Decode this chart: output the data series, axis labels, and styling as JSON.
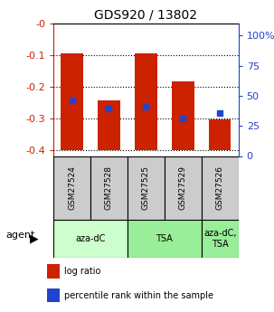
{
  "title": "GDS920 / 13802",
  "samples": [
    "GSM27524",
    "GSM27528",
    "GSM27525",
    "GSM27529",
    "GSM27526"
  ],
  "bar_bottoms": [
    -0.4,
    -0.4,
    -0.4,
    -0.4,
    -0.4
  ],
  "bar_tops": [
    -0.095,
    -0.245,
    -0.095,
    -0.185,
    -0.305
  ],
  "percentile_y": [
    -0.245,
    -0.27,
    -0.265,
    -0.3,
    -0.285
  ],
  "ylim_left": [
    -0.42,
    0.0
  ],
  "ylim_right": [
    0,
    110
  ],
  "yticks_left": [
    0.0,
    -0.1,
    -0.2,
    -0.3,
    -0.4
  ],
  "ytick_labels_left": [
    "-0",
    "-0.1",
    "-0.2",
    "-0.3",
    "-0.4"
  ],
  "yticks_right": [
    0,
    25,
    50,
    75,
    100
  ],
  "ytick_labels_right": [
    "0",
    "25",
    "50",
    "75",
    "100%"
  ],
  "group_spans": [
    {
      "start": 0,
      "end": 1,
      "label": "aza-dC",
      "color": "#ccffcc"
    },
    {
      "start": 2,
      "end": 3,
      "label": "TSA",
      "color": "#99ee99"
    },
    {
      "start": 4,
      "end": 4,
      "label": "aza-dC,\nTSA",
      "color": "#99ee99"
    }
  ],
  "bar_color": "#cc2200",
  "percentile_color": "#2244cc",
  "bg_color": "#ffffff",
  "sample_box_color": "#cccccc",
  "legend_items": [
    {
      "color": "#cc2200",
      "label": "log ratio"
    },
    {
      "color": "#2244cc",
      "label": "percentile rank within the sample"
    }
  ]
}
